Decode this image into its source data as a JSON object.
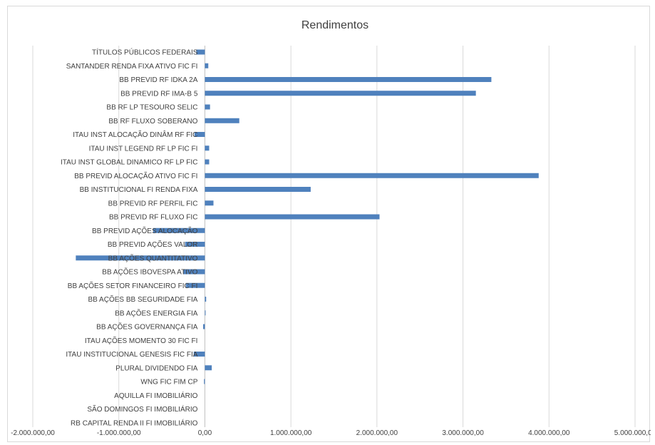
{
  "chart_data": {
    "type": "bar",
    "orientation": "horizontal",
    "title": "Rendimentos",
    "xlabel": "",
    "ylabel": "",
    "xlim": [
      -2000000,
      5000000
    ],
    "x_ticks": [
      -2000000,
      -1000000,
      0,
      1000000,
      2000000,
      3000000,
      4000000,
      5000000
    ],
    "x_tick_labels": [
      "-2.000.000,00",
      "-1.000.000,00",
      "0,00",
      "1.000.000,00",
      "2.000.000,00",
      "3.000.000,00",
      "4.000.000,00",
      "5.000.000,00"
    ],
    "grid": true,
    "bar_color": "#4f81bd",
    "categories": [
      "TÍTULOS PÚBLICOS FEDERAIS",
      "SANTANDER RENDA FIXA ATIVO FIC FI",
      "BB PREVID RF IDKA 2A",
      "BB PREVID RF IMA-B 5",
      "BB RF LP TESOURO SELIC",
      "BB RF FLUXO SOBERANO",
      "ITAU INST ALOCAÇÃO DINÂM RF FIC",
      "ITAU INST LEGEND RF LP FIC FI",
      "ITAU INST GLOBAL DINAMICO RF LP FIC",
      "BB PREVID ALOCAÇÃO ATIVO FIC FI",
      "BB INSTITUCIONAL FI RENDA FIXA",
      "BB PREVID RF PERFIL FIC",
      "BB PREVID RF FLUXO FIC",
      "BB PREVID AÇÕES ALOCAÇÃO",
      "BB PREVID AÇÕES VALOR",
      "BB AÇÕES QUANTITATIVO",
      "BB AÇÕES IBOVESPA ATIVO",
      "BB AÇÕES SETOR FINANCEIRO FIC FI",
      "BB AÇÕES BB SEGURIDADE FIA",
      "BB AÇÕES ENERGIA FIA",
      "BB AÇÕES GOVERNANÇA FIA",
      "ITAU AÇÕES MOMENTO 30 FIC FI",
      "ITAU INSTITUCIONAL GENESIS FIC FIA",
      "PLURAL DIVIDENDO FIA",
      "WNG FIC FIM CP",
      "AQUILLA FI IMOBILIÁRIO",
      "SÃO DOMINGOS FI IMOBILIÁRIO",
      "RB CAPITAL RENDA II FI IMOBILIÁRIO"
    ],
    "values": [
      -100000,
      40000,
      3330000,
      3150000,
      60000,
      400000,
      -120000,
      50000,
      50000,
      3880000,
      1230000,
      100000,
      2030000,
      -600000,
      -230000,
      -1500000,
      -250000,
      -220000,
      15000,
      5000,
      -20000,
      0,
      -130000,
      80000,
      -10000,
      0,
      0,
      0
    ]
  }
}
